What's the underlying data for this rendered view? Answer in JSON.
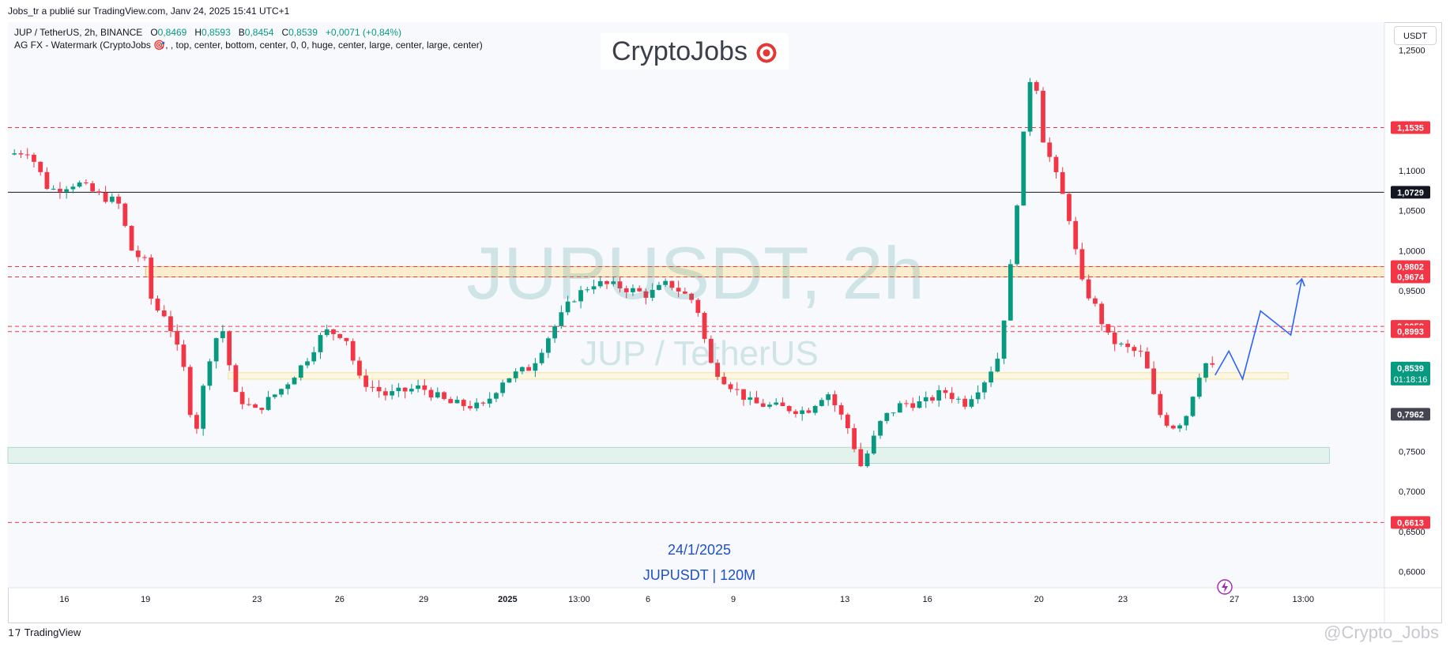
{
  "header": {
    "published": "Jobs_tr a publié sur TradingView.com, Janv 24, 2025 15:41 UTC+1"
  },
  "legend": {
    "symbol": "JUP / TetherUS, 2h, BINANCE",
    "open_label": "O",
    "open": "0,8469",
    "high_label": "H",
    "high": "0,8593",
    "low_label": "B",
    "low": "0,8454",
    "close_label": "C",
    "close": "0,8539",
    "change": "+0,0071 (+0,84%)",
    "indicator": "AG FX - Watermark (CryptoJobs 🎯, , top, center, bottom, center, 0, 0, huge, center, large, center, large, center)"
  },
  "currency_button": "USDT",
  "watermark": {
    "brand": "CryptoJobs",
    "brand_icon": "target-icon",
    "symbol": "JUPUSDT, 2h",
    "pair": "JUP / TetherUS"
  },
  "annotations": {
    "date": "24/1/2025",
    "symbol_tf": "JUPUSDT | 120M"
  },
  "footer": {
    "brand": "TradingView",
    "brand_icon": "tv-logo-icon"
  },
  "credit": "@Crypto_Jobs",
  "colors": {
    "up": "#089981",
    "down": "#f23645",
    "level_line": "#f23645",
    "resistance_zone": "#fbe3a8",
    "support_zone": "#fff5c8",
    "demand_zone": "#d3ece1",
    "projection": "#2962ff"
  },
  "chart_data": {
    "type": "candlestick",
    "symbol": "JUPUSDT",
    "timeframe": "2h",
    "ylim": [
      0.58,
      1.285
    ],
    "y_ticks": [
      {
        "value": 1.25,
        "label": "1,2500"
      },
      {
        "value": 1.1,
        "label": "1,1000"
      },
      {
        "value": 1.05,
        "label": "1,0500"
      },
      {
        "value": 1.0,
        "label": "1,0000"
      },
      {
        "value": 0.95,
        "label": "0,9500"
      },
      {
        "value": 0.75,
        "label": "0,7500"
      },
      {
        "value": 0.7,
        "label": "0,7000"
      },
      {
        "value": 0.65,
        "label": "0,6500"
      },
      {
        "value": 0.6,
        "label": "0,6000"
      }
    ],
    "x_ticks": [
      {
        "label": "16",
        "pos": 0.041
      },
      {
        "label": "19",
        "pos": 0.1
      },
      {
        "label": "23",
        "pos": 0.181
      },
      {
        "label": "26",
        "pos": 0.241
      },
      {
        "label": "29",
        "pos": 0.302
      },
      {
        "label": "2025",
        "pos": 0.363,
        "bold": true
      },
      {
        "label": "13:00",
        "pos": 0.415
      },
      {
        "label": "6",
        "pos": 0.465
      },
      {
        "label": "9",
        "pos": 0.527
      },
      {
        "label": "13",
        "pos": 0.608
      },
      {
        "label": "16",
        "pos": 0.668
      },
      {
        "label": "20",
        "pos": 0.749
      },
      {
        "label": "23",
        "pos": 0.81
      },
      {
        "label": "27",
        "pos": 0.891
      },
      {
        "label": "13:00",
        "pos": 0.941
      }
    ],
    "levels": [
      {
        "value": 1.1535,
        "label": "1,1535",
        "style": "dashed-red"
      },
      {
        "value": 1.0729,
        "label": "1,0729",
        "style": "solid-black"
      },
      {
        "value": 0.9802,
        "label": "0,9802",
        "style": "dashed-red"
      },
      {
        "value": 0.9674,
        "label": "0,9674",
        "style": "dashed-red"
      },
      {
        "value": 0.9058,
        "label": "0,9058",
        "style": "dashed-red"
      },
      {
        "value": 0.8993,
        "label": "0,8993",
        "style": "dashed-red"
      },
      {
        "value": 0.6613,
        "label": "0,6613",
        "style": "dashed-red"
      }
    ],
    "price_marker": {
      "value": 0.8539,
      "label": "0,8539",
      "countdown": "01:18:16"
    },
    "prev_marker": {
      "value": 0.7962,
      "label": "0,7962"
    },
    "zones": [
      {
        "name": "resistance-zone",
        "from": 0.9674,
        "to": 0.9802,
        "x_start": 0.1,
        "x_end": 1.0
      },
      {
        "name": "mid-zone",
        "from": 0.84,
        "to": 0.848,
        "x_start": 0.16,
        "x_end": 0.93
      },
      {
        "name": "demand-zone",
        "from": 0.735,
        "to": 0.755,
        "x_start": 0.0,
        "x_end": 0.96
      }
    ],
    "path_anchors": [
      [
        0.0,
        1.12
      ],
      [
        0.015,
        1.125
      ],
      [
        0.03,
        1.075
      ],
      [
        0.05,
        1.085
      ],
      [
        0.065,
        1.07
      ],
      [
        0.08,
        1.06
      ],
      [
        0.09,
        1.0
      ],
      [
        0.1,
        0.985
      ],
      [
        0.105,
        0.93
      ],
      [
        0.115,
        0.92
      ],
      [
        0.13,
        0.84
      ],
      [
        0.135,
        0.76
      ],
      [
        0.145,
        0.86
      ],
      [
        0.155,
        0.91
      ],
      [
        0.165,
        0.82
      ],
      [
        0.18,
        0.8
      ],
      [
        0.2,
        0.83
      ],
      [
        0.215,
        0.86
      ],
      [
        0.23,
        0.9
      ],
      [
        0.245,
        0.895
      ],
      [
        0.255,
        0.84
      ],
      [
        0.275,
        0.82
      ],
      [
        0.3,
        0.83
      ],
      [
        0.32,
        0.81
      ],
      [
        0.345,
        0.805
      ],
      [
        0.36,
        0.84
      ],
      [
        0.38,
        0.855
      ],
      [
        0.395,
        0.9
      ],
      [
        0.41,
        0.94
      ],
      [
        0.425,
        0.96
      ],
      [
        0.445,
        0.955
      ],
      [
        0.465,
        0.945
      ],
      [
        0.48,
        0.96
      ],
      [
        0.5,
        0.935
      ],
      [
        0.51,
        0.86
      ],
      [
        0.52,
        0.84
      ],
      [
        0.54,
        0.81
      ],
      [
        0.56,
        0.805
      ],
      [
        0.58,
        0.8
      ],
      [
        0.595,
        0.825
      ],
      [
        0.61,
        0.78
      ],
      [
        0.62,
        0.73
      ],
      [
        0.635,
        0.79
      ],
      [
        0.65,
        0.81
      ],
      [
        0.665,
        0.81
      ],
      [
        0.68,
        0.825
      ],
      [
        0.695,
        0.81
      ],
      [
        0.71,
        0.84
      ],
      [
        0.72,
        0.87
      ],
      [
        0.73,
        1.0
      ],
      [
        0.735,
        1.1
      ],
      [
        0.745,
        1.25
      ],
      [
        0.75,
        1.15
      ],
      [
        0.76,
        1.1
      ],
      [
        0.77,
        1.05
      ],
      [
        0.78,
        0.96
      ],
      [
        0.79,
        0.93
      ],
      [
        0.8,
        0.89
      ],
      [
        0.81,
        0.88
      ],
      [
        0.825,
        0.87
      ],
      [
        0.835,
        0.8
      ],
      [
        0.845,
        0.78
      ],
      [
        0.855,
        0.79
      ],
      [
        0.865,
        0.845
      ],
      [
        0.87,
        0.86
      ],
      [
        0.875,
        0.8539
      ]
    ],
    "candle_count": 185,
    "projection": [
      [
        0.877,
        0.845
      ],
      [
        0.887,
        0.875
      ],
      [
        0.897,
        0.84
      ],
      [
        0.91,
        0.925
      ],
      [
        0.932,
        0.895
      ],
      [
        0.94,
        0.965
      ]
    ]
  }
}
